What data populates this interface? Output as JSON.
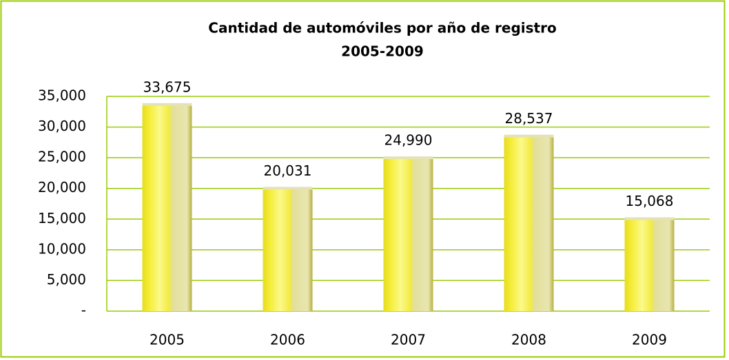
{
  "chart_data": {
    "type": "bar",
    "title": "Cantidad de automóviles por año de registro",
    "subtitle": "2005-2009",
    "categories": [
      "2005",
      "2006",
      "2007",
      "2008",
      "2009"
    ],
    "values": [
      33675,
      20031,
      24990,
      28537,
      15068
    ],
    "value_labels": [
      "33,675",
      "20,031",
      "24,990",
      "28,537",
      "15,068"
    ],
    "color": "#f5ee3a",
    "ylim": [
      0,
      35000
    ],
    "yticks": [
      {
        "value": 0,
        "label": "-"
      },
      {
        "value": 5000,
        "label": "5,000"
      },
      {
        "value": 10000,
        "label": "10,000"
      },
      {
        "value": 15000,
        "label": "15,000"
      },
      {
        "value": 20000,
        "label": "20,000"
      },
      {
        "value": 25000,
        "label": "25,000"
      },
      {
        "value": 30000,
        "label": "30,000"
      },
      {
        "value": 35000,
        "label": "35,000"
      }
    ],
    "grid": true
  }
}
